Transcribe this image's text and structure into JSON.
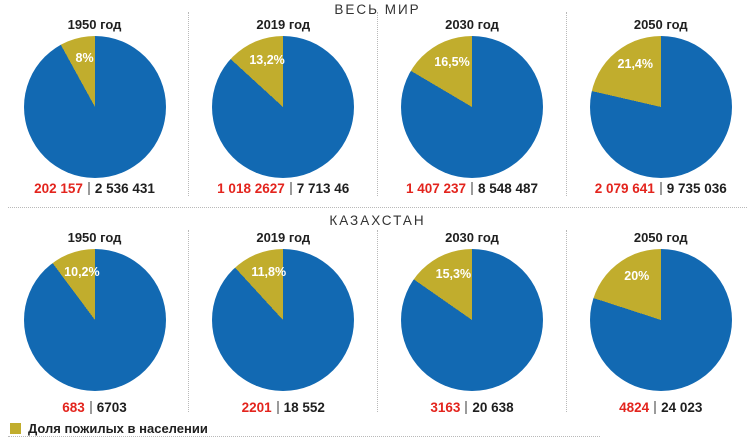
{
  "colors": {
    "elderly": "#c1ad2d",
    "rest": "#1269b2",
    "highlight_red": "#e3241d",
    "text_dark": "#1f1f1f",
    "dotted_divider": "#b9b9b9",
    "value_separator_gray": "#9b9b9b",
    "percent_label_text": "#ffffff"
  },
  "legend": {
    "label": "Доля пожилых в населении"
  },
  "chart_data": {
    "type": "pie",
    "layout": "2 rows x 4 pies, dotted dividers between columns and rows, legend bottom-left",
    "slice_direction": "elderly slice drawn counterclockwise from 12 o'clock",
    "legend": [
      "Доля пожилых в населении"
    ],
    "sections": [
      {
        "title": "ВЕСЬ МИР",
        "pies": [
          {
            "year_label": "1950 год",
            "percent_elderly": 8,
            "percent_label": "8%",
            "elderly_value": "202 157",
            "total_value": "2 536 431"
          },
          {
            "year_label": "2019 год",
            "percent_elderly": 13.2,
            "percent_label": "13,2%",
            "elderly_value": "1 018 2627",
            "total_value": "7 713 46"
          },
          {
            "year_label": "2030 год",
            "percent_elderly": 16.5,
            "percent_label": "16,5%",
            "elderly_value": "1 407 237",
            "total_value": "8 548 487"
          },
          {
            "year_label": "2050 год",
            "percent_elderly": 21.4,
            "percent_label": "21,4%",
            "elderly_value": "2 079 641",
            "total_value": "9 735 036"
          }
        ]
      },
      {
        "title": "КАЗАХСТАН",
        "pies": [
          {
            "year_label": "1950 год",
            "percent_elderly": 10.2,
            "percent_label": "10,2%",
            "elderly_value": "683",
            "total_value": "6703"
          },
          {
            "year_label": "2019 год",
            "percent_elderly": 11.8,
            "percent_label": "11,8%",
            "elderly_value": "2201",
            "total_value": "18 552"
          },
          {
            "year_label": "2030 год",
            "percent_elderly": 15.3,
            "percent_label": "15,3%",
            "elderly_value": "3163",
            "total_value": "20 638"
          },
          {
            "year_label": "2050 год",
            "percent_elderly": 20,
            "percent_label": "20%",
            "elderly_value": "4824",
            "total_value": "24 023"
          }
        ]
      }
    ]
  }
}
